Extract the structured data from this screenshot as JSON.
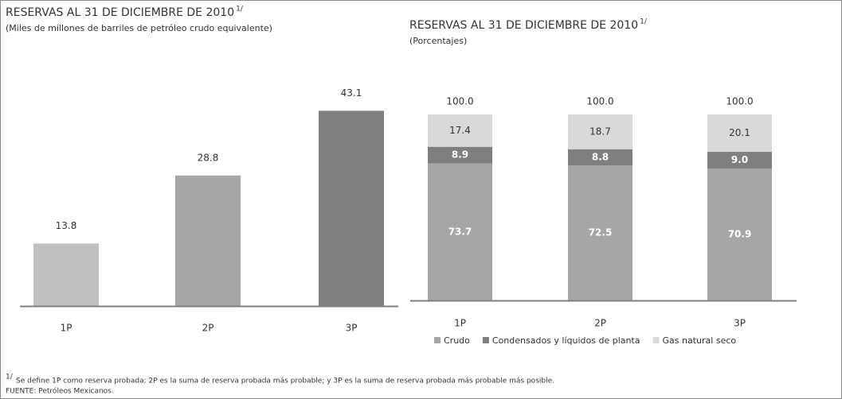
{
  "chart_data": [
    {
      "type": "bar",
      "title": "RESERVAS AL 31 DE DICIEMBRE DE 2010",
      "title_note": "1/",
      "subtitle": "(Miles de millones de barriles de petróleo crudo equivalente)",
      "categories": [
        "1P",
        "2P",
        "3P"
      ],
      "values": [
        13.8,
        28.8,
        43.1
      ],
      "colors": [
        "#c0c0c0",
        "#a6a6a6",
        "#808080"
      ],
      "ylim": [
        0,
        50
      ]
    },
    {
      "type": "stacked_bar",
      "title": "RESERVAS AL 31 DE DICIEMBRE DE 2010",
      "title_note": "1/",
      "subtitle": "(Porcentajes)",
      "categories": [
        "1P",
        "2P",
        "3P"
      ],
      "series": [
        {
          "name": "Crudo",
          "color": "#a6a6a6",
          "values": [
            73.7,
            72.5,
            70.9
          ]
        },
        {
          "name": "Condensados y líquidos de planta",
          "color": "#7f7f7f",
          "values": [
            8.9,
            8.8,
            9.0
          ],
          "value_labels": [
            "8.9",
            "8.8",
            "9.0"
          ]
        },
        {
          "name": "Gas natural seco",
          "color": "#d9d9d9",
          "values": [
            17.4,
            18.7,
            20.1
          ]
        }
      ],
      "totals": [
        100,
        100,
        100
      ],
      "total_labels": [
        "100.0",
        "100.0",
        "100.0"
      ],
      "ylim": [
        0,
        100
      ]
    }
  ],
  "footnote": {
    "mark": "1/",
    "text": "Se define 1P como reserva probada; 2P es la suma de reserva probada más probable; y 3P es la suma de reserva probada más probable más posible."
  },
  "source": "FUENTE: Petróleos Mexicanos."
}
